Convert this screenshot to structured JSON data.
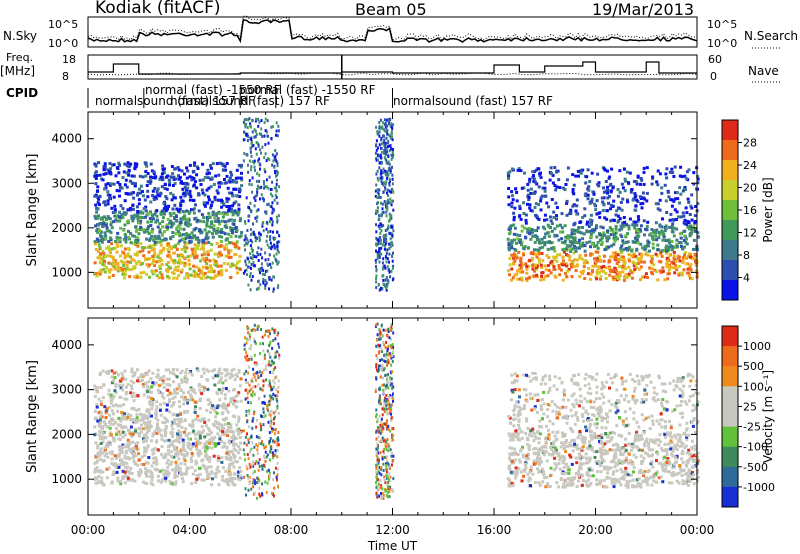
{
  "header": {
    "station": "Kodiak (fitACF)",
    "beam": "Beam 05",
    "date": "19/Mar/2013"
  },
  "strip_labels": {
    "nsky": "N.Sky",
    "nsky_ticks": [
      "10^5",
      "10^0"
    ],
    "freq": "Freq.",
    "freq_unit": "[MHz]",
    "freq_ticks": [
      "18",
      "8"
    ],
    "nsearch": "N.Search",
    "nsearch_ticks": [
      "10^5",
      "10^0"
    ],
    "nave": "Nave",
    "nave_ticks": [
      "60",
      "0"
    ],
    "cpid": "CPID"
  },
  "cpid_segments": [
    {
      "label": "normalsound (fast) 157 RF",
      "start_h": 0.0,
      "end_h": 6.0
    },
    {
      "label": "normal (fast) -1550 RF",
      "start_h": 2.2,
      "end_h": 6.0
    },
    {
      "label": "normalsound (fast) 157 RF",
      "start_h": 6.0,
      "end_h": 7.4
    },
    {
      "label": "normal (fast) -1550 RF",
      "start_h": 7.4,
      "end_h": 12.0
    },
    {
      "label": "normalsound (fast) 157 RF",
      "start_h": 12.0,
      "end_h": 24.0
    }
  ],
  "chart_data": [
    {
      "type": "heatmap",
      "name": "power_panel",
      "xlabel": "",
      "ylabel": "Slant Range [km]",
      "xlim": [
        0,
        24
      ],
      "ylim": [
        200,
        4600
      ],
      "yticks": [
        1000,
        2000,
        3000,
        4000
      ],
      "colorbar": {
        "label": "Power [dB]",
        "ticks": [
          "4",
          "8",
          "12",
          "16",
          "20",
          "24",
          "28"
        ],
        "colors": [
          "#0a12e6",
          "#2e4fb0",
          "#3d7a8c",
          "#3f9a5a",
          "#6fbf3a",
          "#c9cf2c",
          "#f0b020",
          "#ee6a1c",
          "#e02a18"
        ]
      },
      "echo_bands": [
        {
          "t0": 0.2,
          "t1": 6.0,
          "r0": 900,
          "r1": 1700,
          "level": 6
        },
        {
          "t0": 0.2,
          "t1": 6.0,
          "r0": 1700,
          "r1": 2400,
          "level": 3
        },
        {
          "t0": 0.2,
          "t1": 6.0,
          "r0": 2400,
          "r1": 3500,
          "level": 1
        },
        {
          "t0": 16.5,
          "t1": 24.0,
          "r0": 850,
          "r1": 1500,
          "level": 7
        },
        {
          "t0": 16.5,
          "t1": 24.0,
          "r0": 1500,
          "r1": 2100,
          "level": 3
        },
        {
          "t0": 16.5,
          "t1": 24.0,
          "r0": 2100,
          "r1": 3400,
          "level": 1
        }
      ]
    },
    {
      "type": "heatmap",
      "name": "velocity_panel",
      "xlabel": "Time UT",
      "ylabel": "Slant Range [km]",
      "xlim": [
        0,
        24
      ],
      "ylim": [
        200,
        4600
      ],
      "yticks": [
        1000,
        2000,
        3000,
        4000
      ],
      "xticks": [
        "00:00",
        "04:00",
        "08:00",
        "12:00",
        "16:00",
        "20:00",
        "00:00"
      ],
      "colorbar": {
        "label": "Velocity [m s⁻¹]",
        "ticks": [
          "1000",
          "500",
          "100",
          "25",
          "-25",
          "-100",
          "-500",
          "-1000"
        ],
        "colors": [
          "#1a2ed6",
          "#2e6a9a",
          "#3d8a5a",
          "#5fc23a",
          "#c8c8c0",
          "#c8c8c0",
          "#f08a1c",
          "#ee6a1c",
          "#e02a18"
        ]
      }
    }
  ]
}
